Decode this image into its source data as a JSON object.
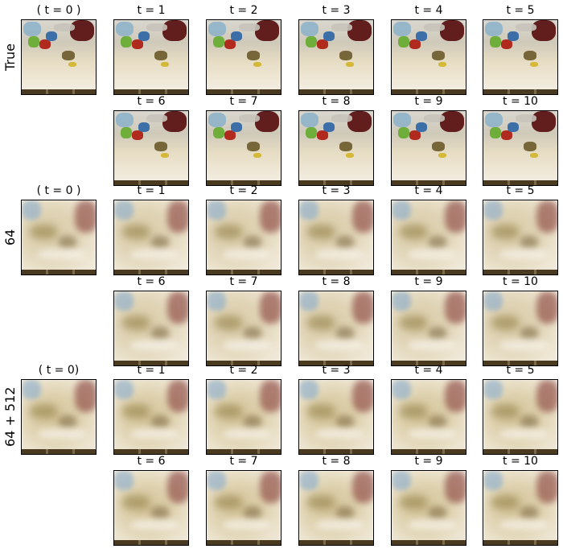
{
  "row_labels": [
    "True",
    "64",
    "64 + 512"
  ],
  "groups": [
    {
      "kind": "sharp",
      "row1_titles": [
        "( t = 0 )",
        "t = 1",
        "t = 2",
        "t = 3",
        "t = 4",
        "t = 5"
      ],
      "row2_titles": [
        "t = 6",
        "t = 7",
        "t = 8",
        "t = 9",
        "t = 10"
      ]
    },
    {
      "kind": "blurry",
      "row1_titles": [
        "( t = 0 )",
        "t = 1",
        "t = 2",
        "t = 3",
        "t = 4",
        "t = 5"
      ],
      "row2_titles": [
        "t = 6",
        "t = 7",
        "t = 8",
        "t = 9",
        "t = 10"
      ]
    },
    {
      "kind": "blurry2",
      "row1_titles": [
        "( t = 0)",
        "t = 1",
        "t = 2",
        "t = 3",
        "t = 4",
        "t = 5"
      ],
      "row2_titles": [
        "t = 6",
        "t = 7",
        "t = 8",
        "t = 9",
        "t = 10"
      ]
    }
  ]
}
